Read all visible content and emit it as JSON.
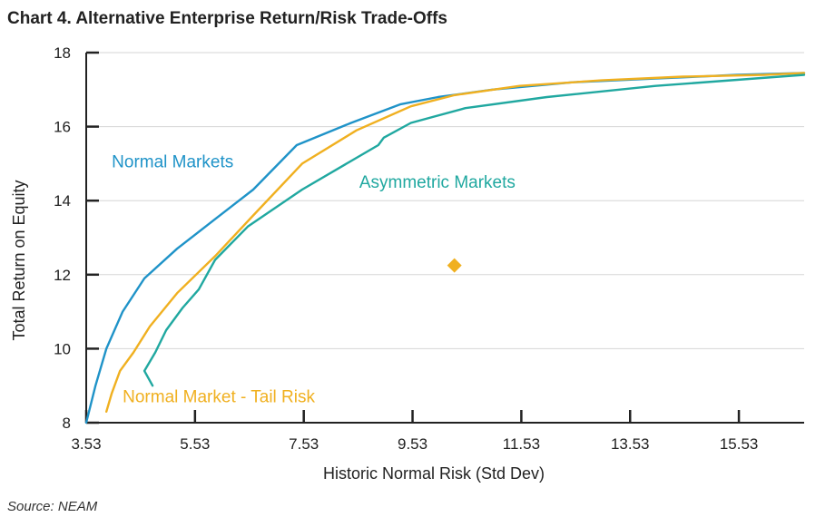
{
  "title": "Chart 4. Alternative Enterprise Return/Risk Trade-Offs",
  "source": "Source: NEAM",
  "chart_data": {
    "type": "line",
    "xlabel": "Historic Normal Risk (Std Dev)",
    "ylabel": "Total Return on Equity",
    "xlim": [
      3.53,
      16.73
    ],
    "ylim": [
      8,
      18
    ],
    "xticks": [
      3.53,
      5.53,
      7.53,
      9.53,
      11.53,
      13.53,
      15.53
    ],
    "xtick_labels": [
      "3.53",
      "5.53",
      "7.53",
      "9.53",
      "11.53",
      "13.53",
      "15.53"
    ],
    "yticks": [
      8,
      10,
      12,
      14,
      16,
      18
    ],
    "ytick_labels": [
      "8",
      "10",
      "12",
      "14",
      "16",
      "18"
    ],
    "grid": "horizontal",
    "series": [
      {
        "name": "Normal Markets",
        "color": "#1f93c8",
        "points": [
          [
            3.53,
            8.0
          ],
          [
            3.7,
            9.0
          ],
          [
            3.9,
            10.0
          ],
          [
            4.2,
            11.0
          ],
          [
            4.6,
            11.9
          ],
          [
            5.2,
            12.7
          ],
          [
            5.9,
            13.5
          ],
          [
            6.6,
            14.3
          ],
          [
            7.4,
            15.5
          ],
          [
            8.4,
            16.1
          ],
          [
            9.3,
            16.6
          ],
          [
            10.0,
            16.8
          ],
          [
            11.0,
            17.0
          ],
          [
            12.5,
            17.2
          ],
          [
            14.0,
            17.3
          ],
          [
            15.5,
            17.4
          ],
          [
            16.73,
            17.45
          ]
        ]
      },
      {
        "name": "Normal Market - Tail Risk",
        "color": "#f0b020",
        "points": [
          [
            3.9,
            8.3
          ],
          [
            4.0,
            8.8
          ],
          [
            4.15,
            9.4
          ],
          [
            4.4,
            9.9
          ],
          [
            4.7,
            10.6
          ],
          [
            5.2,
            11.5
          ],
          [
            5.9,
            12.5
          ],
          [
            6.6,
            13.6
          ],
          [
            7.5,
            15.0
          ],
          [
            8.5,
            15.9
          ],
          [
            9.5,
            16.55
          ],
          [
            10.3,
            16.85
          ],
          [
            11.5,
            17.1
          ],
          [
            13.0,
            17.25
          ],
          [
            14.5,
            17.35
          ],
          [
            16.0,
            17.4
          ],
          [
            16.73,
            17.45
          ]
        ]
      },
      {
        "name": "Asymmetric Markets",
        "color": "#20a8a0",
        "points": [
          [
            4.75,
            9.0
          ],
          [
            4.6,
            9.4
          ],
          [
            4.8,
            9.9
          ],
          [
            5.0,
            10.5
          ],
          [
            5.3,
            11.1
          ],
          [
            5.6,
            11.6
          ],
          [
            5.9,
            12.4
          ],
          [
            6.5,
            13.3
          ],
          [
            7.5,
            14.3
          ],
          [
            8.9,
            15.5
          ],
          [
            9.0,
            15.7
          ],
          [
            9.5,
            16.1
          ],
          [
            10.5,
            16.5
          ],
          [
            12.0,
            16.8
          ],
          [
            14.0,
            17.1
          ],
          [
            16.73,
            17.4
          ]
        ]
      }
    ],
    "labels": [
      {
        "text": "Normal Markets",
        "x": 4.0,
        "y": 14.9,
        "color": "#1f93c8"
      },
      {
        "text": "Asymmetric Markets",
        "x": 8.55,
        "y": 14.35,
        "color": "#20a8a0"
      },
      {
        "text": "Normal Market - Tail Risk",
        "x": 4.2,
        "y": 8.55,
        "color": "#f0b020"
      }
    ],
    "markers": [
      {
        "x": 10.3,
        "y": 12.25,
        "shape": "diamond",
        "color": "#f0b020"
      }
    ]
  }
}
